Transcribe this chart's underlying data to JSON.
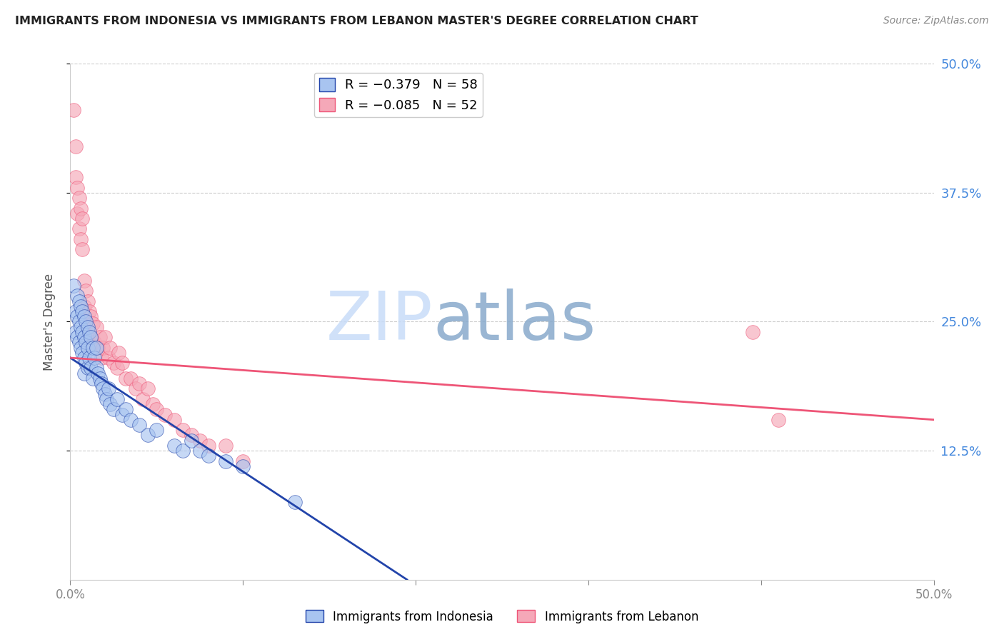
{
  "title": "IMMIGRANTS FROM INDONESIA VS IMMIGRANTS FROM LEBANON MASTER'S DEGREE CORRELATION CHART",
  "source": "Source: ZipAtlas.com",
  "ylabel": "Master's Degree",
  "xlim": [
    0.0,
    0.5
  ],
  "ylim": [
    0.0,
    0.5
  ],
  "color_indonesia": "#A8C4F0",
  "color_lebanon": "#F5A8B8",
  "trendline_color_indonesia": "#2244AA",
  "trendline_color_lebanon": "#EE5577",
  "watermark_zip": "ZIP",
  "watermark_atlas": "atlas",
  "indo_trend_x0": 0.0,
  "indo_trend_y0": 0.215,
  "indo_trend_x1": 0.195,
  "indo_trend_y1": 0.0,
  "leb_trend_x0": 0.0,
  "leb_trend_y0": 0.215,
  "leb_trend_x1": 0.5,
  "leb_trend_y1": 0.155,
  "indonesia_x": [
    0.002,
    0.003,
    0.003,
    0.004,
    0.004,
    0.004,
    0.005,
    0.005,
    0.005,
    0.006,
    0.006,
    0.006,
    0.007,
    0.007,
    0.007,
    0.008,
    0.008,
    0.008,
    0.008,
    0.009,
    0.009,
    0.009,
    0.01,
    0.01,
    0.01,
    0.011,
    0.011,
    0.012,
    0.012,
    0.013,
    0.013,
    0.014,
    0.015,
    0.015,
    0.016,
    0.017,
    0.018,
    0.019,
    0.02,
    0.021,
    0.022,
    0.023,
    0.025,
    0.027,
    0.03,
    0.032,
    0.035,
    0.04,
    0.045,
    0.05,
    0.06,
    0.065,
    0.07,
    0.075,
    0.08,
    0.09,
    0.1,
    0.13
  ],
  "indonesia_y": [
    0.285,
    0.26,
    0.24,
    0.275,
    0.255,
    0.235,
    0.27,
    0.25,
    0.23,
    0.265,
    0.245,
    0.225,
    0.26,
    0.24,
    0.22,
    0.255,
    0.235,
    0.215,
    0.2,
    0.25,
    0.23,
    0.21,
    0.245,
    0.225,
    0.205,
    0.24,
    0.215,
    0.235,
    0.205,
    0.225,
    0.195,
    0.215,
    0.225,
    0.205,
    0.2,
    0.195,
    0.19,
    0.185,
    0.18,
    0.175,
    0.185,
    0.17,
    0.165,
    0.175,
    0.16,
    0.165,
    0.155,
    0.15,
    0.14,
    0.145,
    0.13,
    0.125,
    0.135,
    0.125,
    0.12,
    0.115,
    0.11,
    0.075
  ],
  "lebanon_x": [
    0.002,
    0.003,
    0.003,
    0.004,
    0.004,
    0.005,
    0.005,
    0.006,
    0.006,
    0.007,
    0.007,
    0.008,
    0.008,
    0.009,
    0.009,
    0.01,
    0.01,
    0.011,
    0.012,
    0.012,
    0.013,
    0.014,
    0.015,
    0.016,
    0.017,
    0.018,
    0.019,
    0.02,
    0.022,
    0.023,
    0.025,
    0.027,
    0.028,
    0.03,
    0.032,
    0.035,
    0.038,
    0.04,
    0.042,
    0.045,
    0.048,
    0.05,
    0.055,
    0.06,
    0.065,
    0.07,
    0.075,
    0.08,
    0.09,
    0.1,
    0.395,
    0.41
  ],
  "lebanon_y": [
    0.455,
    0.42,
    0.39,
    0.38,
    0.355,
    0.37,
    0.34,
    0.36,
    0.33,
    0.35,
    0.32,
    0.29,
    0.265,
    0.28,
    0.25,
    0.27,
    0.24,
    0.26,
    0.255,
    0.235,
    0.248,
    0.23,
    0.245,
    0.225,
    0.235,
    0.215,
    0.225,
    0.235,
    0.215,
    0.225,
    0.21,
    0.205,
    0.22,
    0.21,
    0.195,
    0.195,
    0.185,
    0.19,
    0.175,
    0.185,
    0.17,
    0.165,
    0.16,
    0.155,
    0.145,
    0.14,
    0.135,
    0.13,
    0.13,
    0.115,
    0.24,
    0.155
  ]
}
